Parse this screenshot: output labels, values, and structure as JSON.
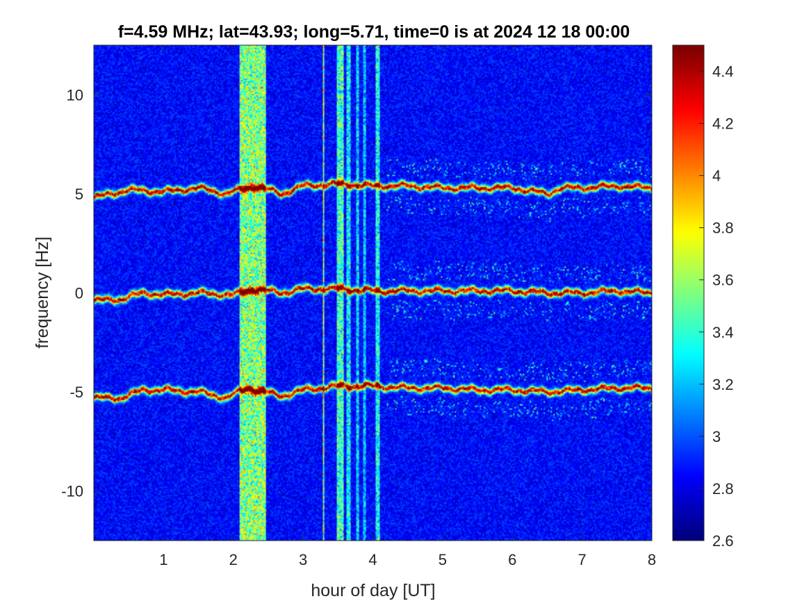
{
  "chart_data": {
    "type": "heatmap",
    "title": "f=4.59 MHz;  lat=43.93; long=5.71, time=0 is at 2024 12 18 00:00",
    "xlabel": "hour of day [UT]",
    "ylabel": "frequency [Hz]",
    "xlim": [
      0,
      8
    ],
    "ylim": [
      -12.5,
      12.5
    ],
    "xticks": [
      1,
      2,
      3,
      4,
      5,
      6,
      7,
      8
    ],
    "yticks": [
      -10,
      -5,
      0,
      5,
      10
    ],
    "colorbar": {
      "limits": [
        2.6,
        4.5
      ],
      "ticks": [
        2.6,
        2.8,
        3,
        3.2,
        3.4,
        3.6,
        3.8,
        4,
        4.2,
        4.4
      ],
      "colormap": "jet"
    },
    "traces": [
      {
        "center": 5,
        "points": [
          [
            0.0,
            4.8
          ],
          [
            0.5,
            5.2
          ],
          [
            1.0,
            5.1
          ],
          [
            1.5,
            5.3
          ],
          [
            1.9,
            5.0
          ],
          [
            2.3,
            5.4
          ],
          [
            2.7,
            5.0
          ],
          [
            3.0,
            5.4
          ],
          [
            3.5,
            5.5
          ],
          [
            4.0,
            5.4
          ],
          [
            4.5,
            5.4
          ],
          [
            5.0,
            5.3
          ],
          [
            5.5,
            5.3
          ],
          [
            6.0,
            5.3
          ],
          [
            6.5,
            5.0
          ],
          [
            6.7,
            5.3
          ],
          [
            7.0,
            5.3
          ],
          [
            7.5,
            5.4
          ],
          [
            8.0,
            5.3
          ]
        ]
      },
      {
        "center": 0,
        "points": [
          [
            0.0,
            -0.4
          ],
          [
            0.4,
            -0.3
          ],
          [
            0.7,
            0.0
          ],
          [
            1.0,
            -0.1
          ],
          [
            1.5,
            0.0
          ],
          [
            2.0,
            -0.1
          ],
          [
            2.3,
            0.2
          ],
          [
            2.7,
            0.0
          ],
          [
            3.0,
            0.2
          ],
          [
            3.5,
            0.2
          ],
          [
            4.0,
            0.1
          ],
          [
            4.5,
            0.1
          ],
          [
            5.0,
            0.1
          ],
          [
            5.5,
            0.1
          ],
          [
            6.0,
            0.1
          ],
          [
            6.5,
            0.0
          ],
          [
            7.0,
            0.0
          ],
          [
            7.5,
            0.1
          ],
          [
            8.0,
            0.0
          ]
        ]
      },
      {
        "center": -5,
        "points": [
          [
            0.0,
            -5.3
          ],
          [
            0.4,
            -5.3
          ],
          [
            0.7,
            -4.9
          ],
          [
            1.0,
            -4.9
          ],
          [
            1.5,
            -5.0
          ],
          [
            1.9,
            -5.3
          ],
          [
            2.2,
            -4.8
          ],
          [
            2.7,
            -5.2
          ],
          [
            3.0,
            -4.9
          ],
          [
            3.5,
            -4.7
          ],
          [
            4.0,
            -4.7
          ],
          [
            4.5,
            -4.8
          ],
          [
            5.0,
            -4.8
          ],
          [
            5.5,
            -4.9
          ],
          [
            6.0,
            -4.9
          ],
          [
            6.5,
            -5.0
          ],
          [
            7.0,
            -4.9
          ],
          [
            7.5,
            -4.8
          ],
          [
            8.0,
            -4.8
          ]
        ]
      }
    ],
    "vertical_bands": [
      {
        "x_start": 2.08,
        "x_end": 2.47,
        "strength": 0.55
      },
      {
        "x_start": 3.48,
        "x_end": 3.58,
        "strength": 0.45
      },
      {
        "x_start": 3.62,
        "x_end": 3.68,
        "strength": 0.35
      },
      {
        "x_start": 3.76,
        "x_end": 3.8,
        "strength": 0.3
      },
      {
        "x_start": 3.86,
        "x_end": 3.9,
        "strength": 0.28
      },
      {
        "x_start": 4.03,
        "x_end": 4.1,
        "strength": 0.38
      },
      {
        "x_start": 3.28,
        "x_end": 3.3,
        "strength": 0.6
      }
    ]
  }
}
